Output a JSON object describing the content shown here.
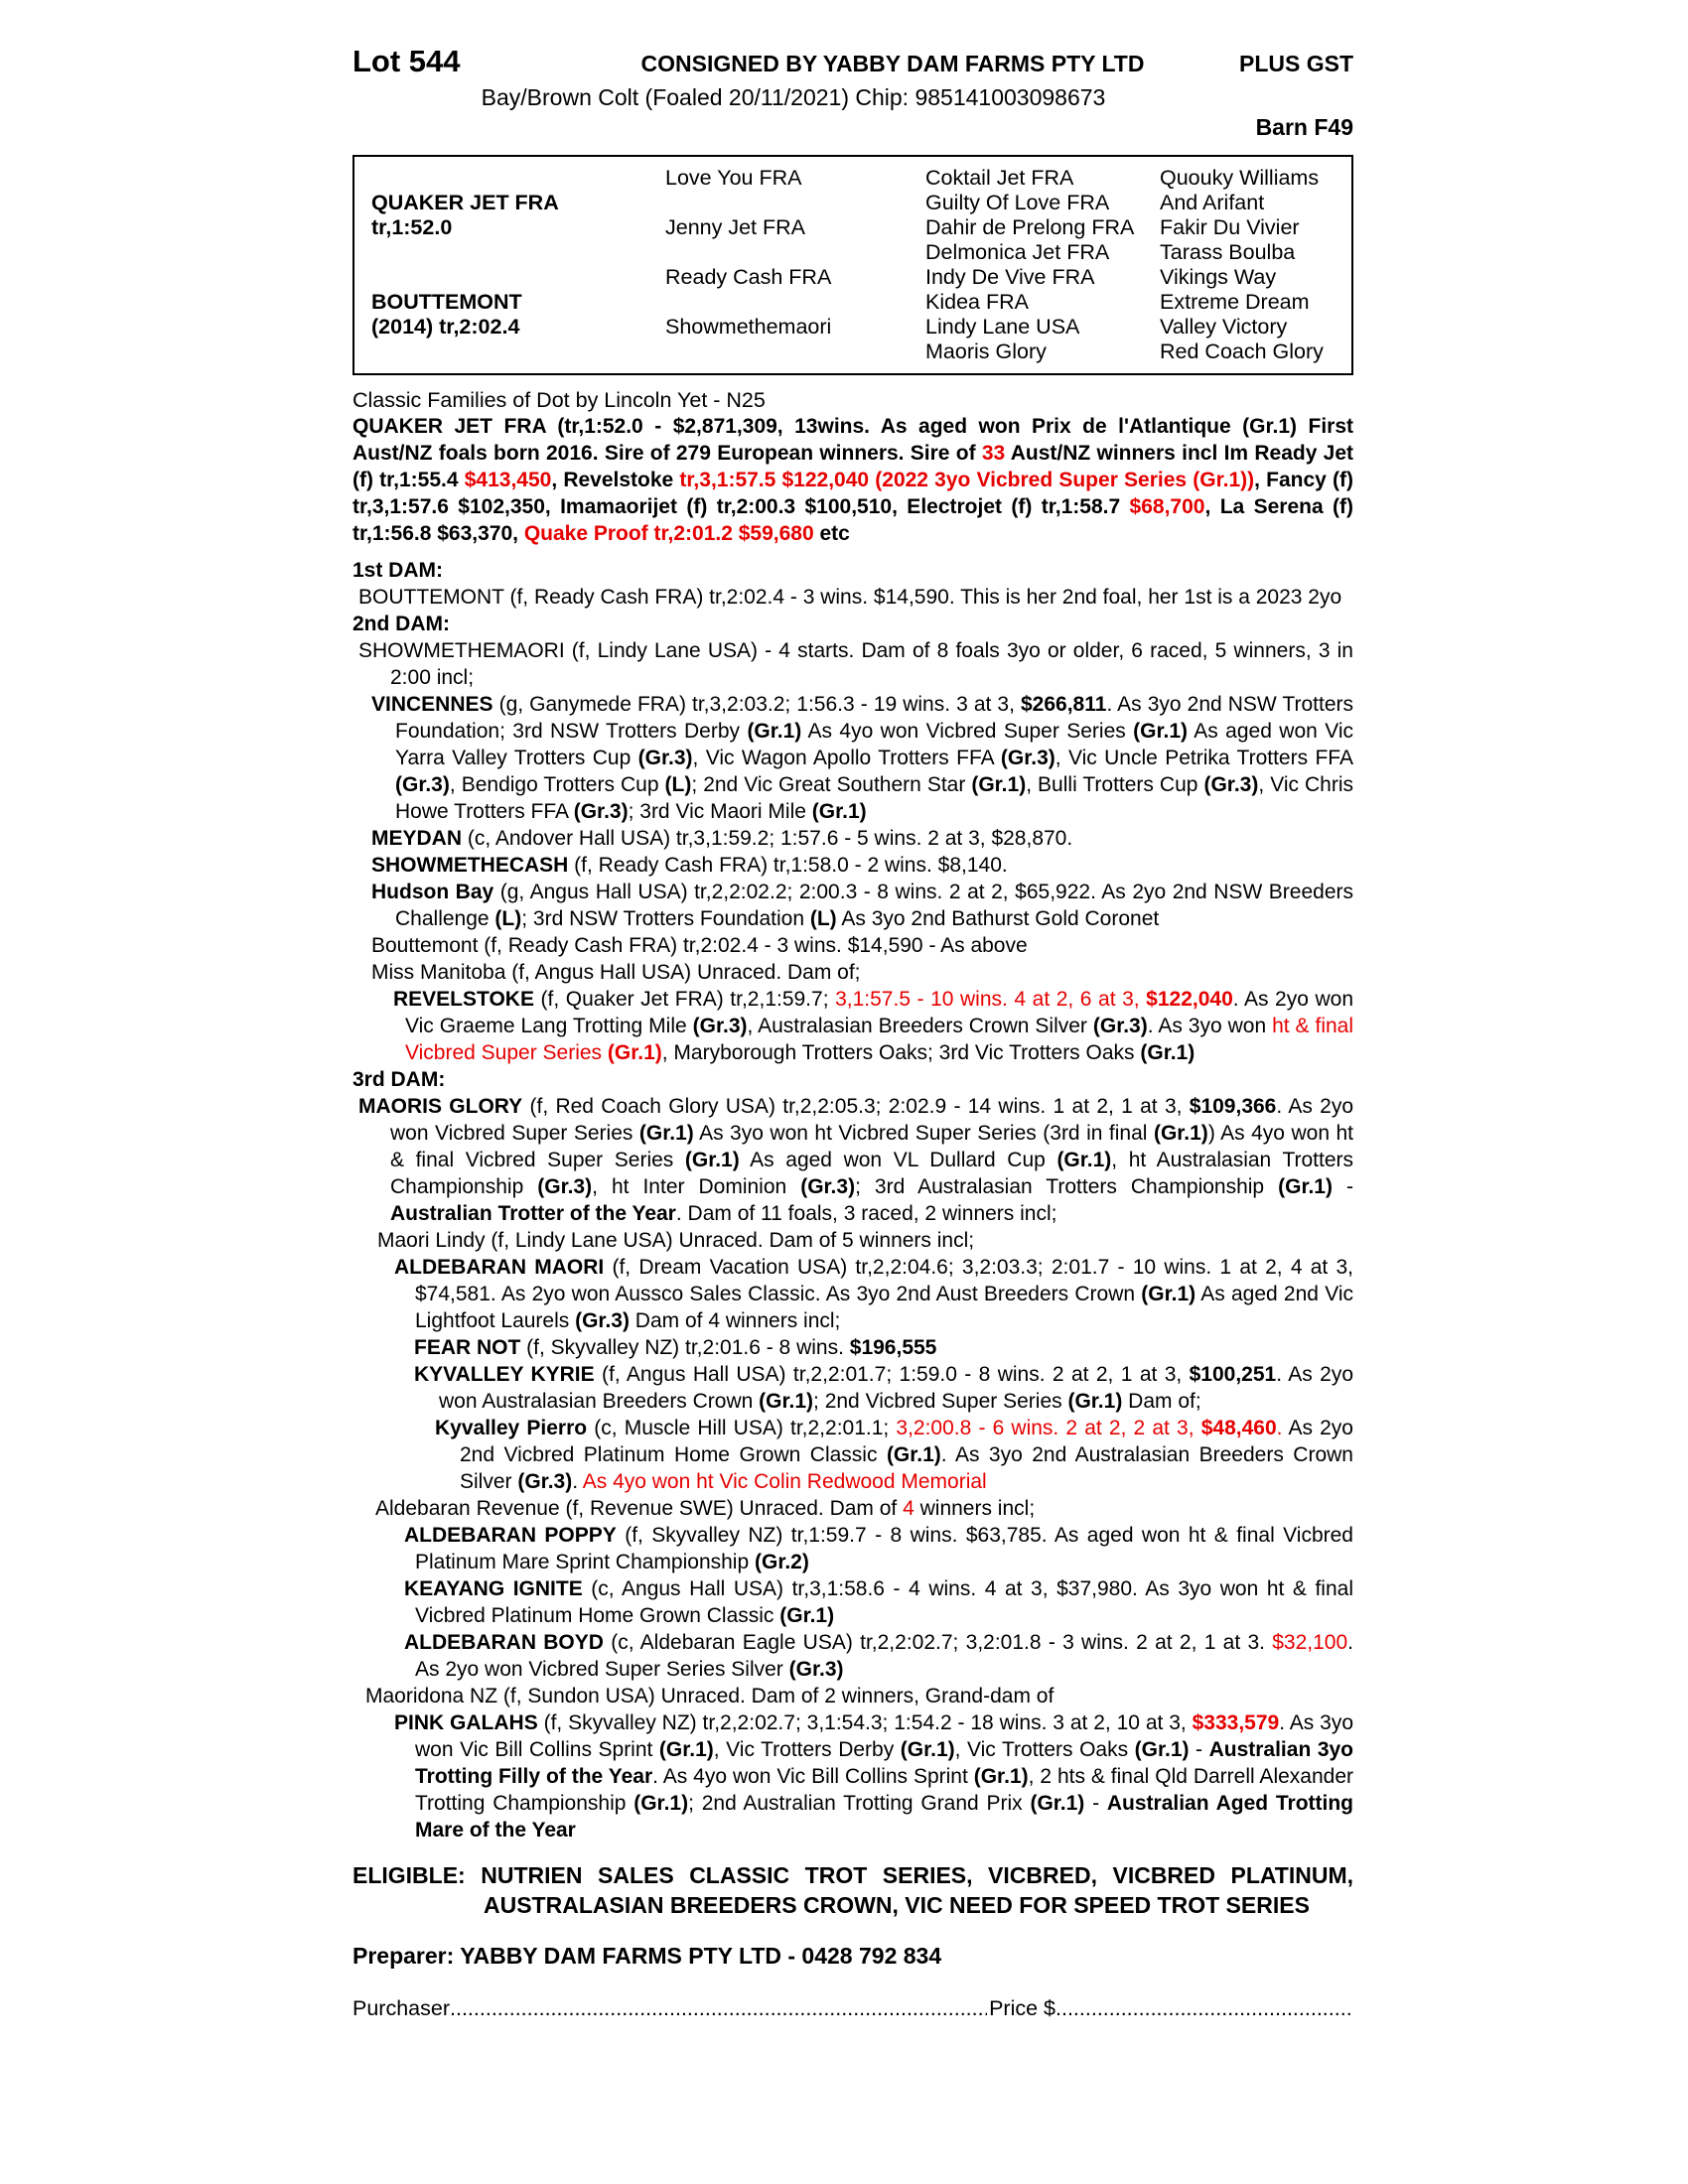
{
  "colors": {
    "red": "#e60000"
  },
  "header": {
    "lot": "Lot 544",
    "consigned": "CONSIGNED BY YABBY DAM FARMS PTY LTD",
    "plus_gst": "PLUS GST",
    "description": "Bay/Brown Colt (Foaled 20/11/2021) Chip: 985141003098673",
    "barn": "Barn F49"
  },
  "pedigree": {
    "col1": [
      "",
      "QUAKER JET FRA",
      "tr,1:52.0",
      "",
      "",
      "BOUTTEMONT",
      "(2014) tr,2:02.4",
      ""
    ],
    "col2": [
      "Love You FRA",
      "",
      "Jenny Jet FRA",
      "",
      "Ready Cash FRA",
      "",
      "Showmethemaori",
      ""
    ],
    "col3": [
      "Coktail Jet FRA",
      "Guilty Of Love FRA",
      "Dahir de Prelong FRA",
      "Delmonica Jet FRA",
      "Indy De Vive FRA",
      "Kidea FRA",
      "Lindy Lane USA",
      "Maoris Glory"
    ],
    "col4": [
      "Quouky Williams",
      "And Arifant",
      "Fakir Du Vivier",
      "Tarass Boulba",
      "Vikings Way",
      "Extreme Dream",
      "Valley Victory",
      "Red Coach Glory"
    ]
  },
  "family_line": "Classic Families of Dot by Lincoln Yet - N25",
  "headers": {
    "dam1": "1st DAM:",
    "dam2": "2nd DAM:",
    "dam3": "3rd DAM:"
  },
  "paras": {
    "sire": [
      {
        "s": "b",
        "t": "QUAKER JET FRA (tr,1:52.0 - $2,871,309, 13wins. As aged won Prix de l'Atlantique (Gr.1) First Aust/NZ foals born 2016. Sire of 279 European winners. Sire of "
      },
      {
        "s": "rb",
        "t": "33"
      },
      {
        "s": "b",
        "t": " Aust/NZ winners incl Im Ready Jet (f) tr,1:55.4 "
      },
      {
        "s": "rb",
        "t": "$413,450"
      },
      {
        "s": "b",
        "t": ", Revelstoke "
      },
      {
        "s": "rb",
        "t": "tr,3,1:57.5 $122,040 (2022 3yo Vicbred Super Series (Gr.1))"
      },
      {
        "s": "b",
        "t": ", Fancy (f) tr,3,1:57.6 $102,350, Imamaorijet (f) tr,2:00.3 $100,510, Electrojet (f) tr,1:58.7 "
      },
      {
        "s": "rb",
        "t": "$68,700"
      },
      {
        "s": "b",
        "t": ", La Serena (f) tr,1:56.8 $63,370, "
      },
      {
        "s": "rb",
        "t": "Quake Proof tr,2:01.2 $59,680"
      },
      {
        "s": "b",
        "t": " etc"
      }
    ],
    "bouttemont1": [
      {
        "s": "",
        "t": "BOUTTEMONT (f, Ready Cash FRA) tr,2:02.4 - 3 wins. $14,590. This is her 2nd foal, her 1st is a 2023 2yo"
      }
    ],
    "showmethemaori": [
      {
        "s": "",
        "t": "SHOWMETHEMAORI (f, Lindy Lane USA) - 4 starts. Dam of 8 foals 3yo or older, 6 raced, 5 winners, 3 in 2:00 incl;"
      }
    ],
    "vincennes": [
      {
        "s": "b",
        "t": "VINCENNES"
      },
      {
        "s": "",
        "t": " (g, Ganymede FRA) tr,3,2:03.2; 1:56.3 - 19 wins. 3 at 3, "
      },
      {
        "s": "b",
        "t": "$266,811"
      },
      {
        "s": "",
        "t": ". As 3yo 2nd NSW Trotters Foundation; 3rd NSW Trotters Derby "
      },
      {
        "s": "b",
        "t": "(Gr.1)"
      },
      {
        "s": "",
        "t": " As 4yo won Vicbred Super Series "
      },
      {
        "s": "b",
        "t": "(Gr.1)"
      },
      {
        "s": "",
        "t": " As aged won Vic Yarra Valley Trotters Cup "
      },
      {
        "s": "b",
        "t": "(Gr.3)"
      },
      {
        "s": "",
        "t": ", Vic Wagon Apollo Trotters FFA "
      },
      {
        "s": "b",
        "t": "(Gr.3)"
      },
      {
        "s": "",
        "t": ", Vic Uncle Petrika Trotters FFA "
      },
      {
        "s": "b",
        "t": "(Gr.3)"
      },
      {
        "s": "",
        "t": ", Bendigo Trotters Cup "
      },
      {
        "s": "b",
        "t": "(L)"
      },
      {
        "s": "",
        "t": "; 2nd Vic Great Southern Star "
      },
      {
        "s": "b",
        "t": "(Gr.1)"
      },
      {
        "s": "",
        "t": ", Bulli Trotters Cup "
      },
      {
        "s": "b",
        "t": "(Gr.3)"
      },
      {
        "s": "",
        "t": ", Vic Chris Howe Trotters FFA "
      },
      {
        "s": "b",
        "t": "(Gr.3)"
      },
      {
        "s": "",
        "t": "; 3rd Vic Maori Mile "
      },
      {
        "s": "b",
        "t": "(Gr.1)"
      }
    ],
    "meydan": [
      {
        "s": "b",
        "t": "MEYDAN"
      },
      {
        "s": "",
        "t": " (c, Andover Hall USA) tr,3,1:59.2; 1:57.6 - 5 wins. 2 at 3, $28,870."
      }
    ],
    "showmethecash": [
      {
        "s": "b",
        "t": "SHOWMETHECASH"
      },
      {
        "s": "",
        "t": " (f, Ready Cash FRA) tr,1:58.0 - 2 wins. $8,140."
      }
    ],
    "hudson_bay": [
      {
        "s": "b",
        "t": "Hudson Bay"
      },
      {
        "s": "",
        "t": " (g, Angus Hall USA) tr,2,2:02.2; 2:00.3 - 8 wins. 2 at 2, $65,922. As 2yo 2nd NSW Breeders Challenge "
      },
      {
        "s": "b",
        "t": "(L)"
      },
      {
        "s": "",
        "t": "; 3rd NSW Trotters Foundation "
      },
      {
        "s": "b",
        "t": "(L)"
      },
      {
        "s": "",
        "t": " As 3yo 2nd Bathurst Gold Coronet"
      }
    ],
    "bouttemont2": [
      {
        "s": "",
        "t": "Bouttemont (f, Ready Cash FRA) tr,2:02.4 - 3 wins. $14,590 - As above"
      }
    ],
    "miss_manitoba": [
      {
        "s": "",
        "t": "Miss Manitoba (f, Angus Hall USA) Unraced. Dam of;"
      }
    ],
    "revelstoke": [
      {
        "s": "b",
        "t": "REVELSTOKE"
      },
      {
        "s": "",
        "t": " (f, Quaker Jet FRA) tr,2,1:59.7; "
      },
      {
        "s": "r",
        "t": "3,1:57.5 - 10 wins. 4 at 2, 6 at 3, "
      },
      {
        "s": "rb",
        "t": "$122,040"
      },
      {
        "s": "",
        "t": ". As 2yo won Vic Graeme Lang Trotting Mile "
      },
      {
        "s": "b",
        "t": "(Gr.3)"
      },
      {
        "s": "",
        "t": ", Australasian Breeders Crown Silver "
      },
      {
        "s": "b",
        "t": "(Gr.3)"
      },
      {
        "s": "",
        "t": ". As 3yo won "
      },
      {
        "s": "r",
        "t": "ht & final Vicbred Super Series "
      },
      {
        "s": "rb",
        "t": "(Gr.1)"
      },
      {
        "s": "",
        "t": ", Maryborough Trotters Oaks; 3rd Vic Trotters Oaks "
      },
      {
        "s": "b",
        "t": "(Gr.1)"
      }
    ],
    "maoris_glory": [
      {
        "s": "b",
        "t": "MAORIS GLORY"
      },
      {
        "s": "",
        "t": " (f, Red Coach Glory USA) tr,2,2:05.3; 2:02.9 - 14 wins. 1 at 2, 1 at 3, "
      },
      {
        "s": "b",
        "t": "$109,366"
      },
      {
        "s": "",
        "t": ". As 2yo won Vicbred Super Series "
      },
      {
        "s": "b",
        "t": "(Gr.1)"
      },
      {
        "s": "",
        "t": " As 3yo won ht Vicbred Super Series (3rd in final "
      },
      {
        "s": "b",
        "t": "(Gr.1)"
      },
      {
        "s": "",
        "t": ") As 4yo won ht & final Vicbred Super Series "
      },
      {
        "s": "b",
        "t": "(Gr.1)"
      },
      {
        "s": "",
        "t": " As aged won VL Dullard Cup "
      },
      {
        "s": "b",
        "t": "(Gr.1)"
      },
      {
        "s": "",
        "t": ", ht Australasian Trotters Championship "
      },
      {
        "s": "b",
        "t": "(Gr.3)"
      },
      {
        "s": "",
        "t": ", ht Inter Dominion "
      },
      {
        "s": "b",
        "t": "(Gr.3)"
      },
      {
        "s": "",
        "t": "; 3rd Australasian Trotters Championship "
      },
      {
        "s": "b",
        "t": "(Gr.1)"
      },
      {
        "s": "",
        "t": " - "
      },
      {
        "s": "b",
        "t": "Australian Trotter of the Year"
      },
      {
        "s": "",
        "t": ". Dam of 11 foals, 3 raced, 2 winners incl;"
      }
    ],
    "maori_lindy": [
      {
        "s": "",
        "t": "Maori Lindy (f, Lindy Lane USA) Unraced. Dam of 5 winners incl;"
      }
    ],
    "aldebaran_maori": [
      {
        "s": "b",
        "t": "ALDEBARAN MAORI"
      },
      {
        "s": "",
        "t": " (f, Dream Vacation USA) tr,2,2:04.6; 3,2:03.3; 2:01.7 - 10 wins. 1 at 2, 4 at 3, $74,581. As 2yo won Aussco Sales Classic. As 3yo 2nd Aust Breeders Crown "
      },
      {
        "s": "b",
        "t": "(Gr.1)"
      },
      {
        "s": "",
        "t": " As aged 2nd Vic Lightfoot Laurels "
      },
      {
        "s": "b",
        "t": "(Gr.3)"
      },
      {
        "s": "",
        "t": " Dam of 4 winners incl;"
      }
    ],
    "fear_not": [
      {
        "s": "b",
        "t": "FEAR NOT"
      },
      {
        "s": "",
        "t": " (f, Skyvalley NZ) tr,2:01.6 - 8 wins. "
      },
      {
        "s": "b",
        "t": "$196,555"
      }
    ],
    "kyvalley_kyrie": [
      {
        "s": "b",
        "t": "KYVALLEY KYRIE"
      },
      {
        "s": "",
        "t": " (f, Angus Hall USA) tr,2,2:01.7; 1:59.0 - 8 wins. 2 at 2, 1 at 3, "
      },
      {
        "s": "b",
        "t": "$100,251"
      },
      {
        "s": "",
        "t": ". As 2yo won Australasian Breeders Crown "
      },
      {
        "s": "b",
        "t": "(Gr.1)"
      },
      {
        "s": "",
        "t": "; 2nd Vicbred Super Series "
      },
      {
        "s": "b",
        "t": "(Gr.1)"
      },
      {
        "s": "",
        "t": " Dam of;"
      }
    ],
    "kyvalley_pierro": [
      {
        "s": "b",
        "t": "Kyvalley Pierro"
      },
      {
        "s": "",
        "t": " (c, Muscle Hill USA) tr,2,2:01.1; "
      },
      {
        "s": "r",
        "t": "3,2:00.8 - 6 wins. 2 at 2, 2 at 3, "
      },
      {
        "s": "rb",
        "t": "$48,460"
      },
      {
        "s": "r",
        "t": ". "
      },
      {
        "s": "",
        "t": "As 2yo 2nd Vicbred Platinum Home Grown Classic "
      },
      {
        "s": "b",
        "t": "(Gr.1)"
      },
      {
        "s": "",
        "t": ". As 3yo 2nd Australasian Breeders Crown Silver "
      },
      {
        "s": "b",
        "t": "(Gr.3)"
      },
      {
        "s": "",
        "t": ". "
      },
      {
        "s": "r",
        "t": "As 4yo won ht Vic Colin Redwood Memorial"
      }
    ],
    "aldebaran_revenue": [
      {
        "s": "",
        "t": "Aldebaran Revenue (f, Revenue SWE) Unraced. Dam of "
      },
      {
        "s": "r",
        "t": "4"
      },
      {
        "s": "",
        "t": " winners incl;"
      }
    ],
    "aldebaran_poppy": [
      {
        "s": "b",
        "t": "ALDEBARAN POPPY"
      },
      {
        "s": "",
        "t": " (f, Skyvalley NZ) tr,1:59.7 - 8 wins. $63,785. As aged won ht & final Vicbred Platinum Mare Sprint Championship "
      },
      {
        "s": "b",
        "t": "(Gr.2)"
      }
    ],
    "keayang_ignite": [
      {
        "s": "b",
        "t": "KEAYANG IGNITE"
      },
      {
        "s": "",
        "t": " (c, Angus Hall USA) tr,3,1:58.6 - 4 wins. 4 at 3, $37,980. As 3yo won ht & final Vicbred Platinum Home Grown Classic "
      },
      {
        "s": "b",
        "t": "(Gr.1)"
      }
    ],
    "aldebaran_boyd": [
      {
        "s": "b",
        "t": "ALDEBARAN BOYD"
      },
      {
        "s": "",
        "t": " (c, Aldebaran Eagle USA) tr,2,2:02.7; 3,2:01.8 - 3 wins. 2 at 2, 1 at 3. "
      },
      {
        "s": "r",
        "t": "$32,100"
      },
      {
        "s": "",
        "t": ". As 2yo won Vicbred Super Series Silver "
      },
      {
        "s": "b",
        "t": "(Gr.3)"
      }
    ],
    "maoridona": [
      {
        "s": "",
        "t": "Maoridona NZ (f, Sundon USA) Unraced. Dam of 2 winners, Grand-dam of"
      }
    ],
    "pink_galahs": [
      {
        "s": "b",
        "t": "PINK GALAHS"
      },
      {
        "s": "",
        "t": " (f, Skyvalley NZ) tr,2,2:02.7; 3,1:54.3; 1:54.2 - 18 wins. 3 at 2, 10 at 3, "
      },
      {
        "s": "rb",
        "t": "$333,579"
      },
      {
        "s": "",
        "t": ". As 3yo won Vic Bill Collins Sprint "
      },
      {
        "s": "b",
        "t": "(Gr.1)"
      },
      {
        "s": "",
        "t": ", Vic Trotters Derby "
      },
      {
        "s": "b",
        "t": "(Gr.1)"
      },
      {
        "s": "",
        "t": ", Vic Trotters Oaks "
      },
      {
        "s": "b",
        "t": "(Gr.1)"
      },
      {
        "s": "",
        "t": " - "
      },
      {
        "s": "b",
        "t": "Australian 3yo Trotting Filly of the Year"
      },
      {
        "s": "",
        "t": ". As 4yo won Vic Bill Collins Sprint "
      },
      {
        "s": "b",
        "t": "(Gr.1)"
      },
      {
        "s": "",
        "t": ", 2 hts & final Qld Darrell Alexander Trotting Championship "
      },
      {
        "s": "b",
        "t": "(Gr.1)"
      },
      {
        "s": "",
        "t": "; 2nd Australian Trotting Grand Prix "
      },
      {
        "s": "b",
        "t": "(Gr.1)"
      },
      {
        "s": "",
        "t": " - "
      },
      {
        "s": "b",
        "t": "Australian Aged Trotting Mare of the Year"
      }
    ]
  },
  "eligible": {
    "label": "ELIGIBLE:",
    "body": "NUTRIEN SALES CLASSIC TROT SERIES, VICBRED, VICBRED PLATINUM, AUSTRALASIAN BREEDERS CROWN, VIC NEED FOR SPEED TROT SERIES"
  },
  "preparer": "Preparer: YABBY DAM FARMS PTY LTD - 0428 792 834",
  "purchaser": {
    "label": "Purchaser",
    "dots1": "..........................................................................................................................................................",
    "price_label": "Price $",
    "dots2": "............................................................................"
  }
}
